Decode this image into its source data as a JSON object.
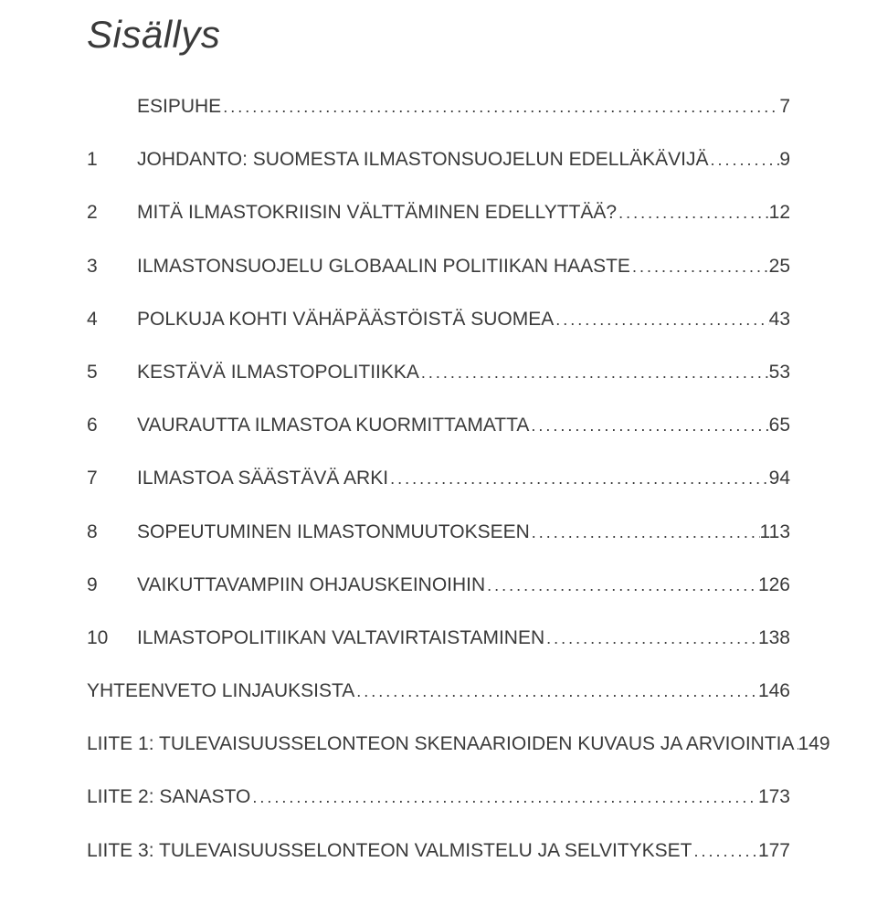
{
  "title": "Sisällys",
  "entries": [
    {
      "num": "",
      "label": "ESIPUHE",
      "page": "7"
    },
    {
      "num": "1",
      "label": "JOHDANTO: SUOMESTA ILMASTONSUOJELUN EDELLÄKÄVIJÄ",
      "page": "9"
    },
    {
      "num": "2",
      "label": "MITÄ ILMASTOKRIISIN VÄLTTÄMINEN EDELLYTTÄÄ?",
      "page": "12"
    },
    {
      "num": "3",
      "label": "ILMASTONSUOJELU GLOBAALIN POLITIIKAN HAASTE",
      "page": "25"
    },
    {
      "num": "4",
      "label": "POLKUJA KOHTI VÄHÄPÄÄSTÖISTÄ SUOMEA",
      "page": "43"
    },
    {
      "num": "5",
      "label": "KESTÄVÄ ILMASTOPOLITIIKKA",
      "page": "53"
    },
    {
      "num": "6",
      "label": "VAURAUTTA ILMASTOA KUORMITTAMATTA",
      "page": "65"
    },
    {
      "num": "7",
      "label": "ILMASTOA SÄÄSTÄVÄ ARKI",
      "page": "94"
    },
    {
      "num": "8",
      "label": "SOPEUTUMINEN ILMASTONMUUTOKSEEN",
      "page": "113"
    },
    {
      "num": "9",
      "label": "VAIKUTTAVAMPIIN OHJAUSKEINOIHIN",
      "page": "126"
    },
    {
      "num": "10",
      "label": "ILMASTOPOLITIIKAN VALTAVIRTAISTAMINEN",
      "page": "138"
    },
    {
      "num": "",
      "label": "YHTEENVETO LINJAUKSISTA",
      "page": "146"
    },
    {
      "num": "",
      "label": "LIITE 1: TULEVAISUUSSELONTEON SKENAARIOIDEN KUVAUS JA ARVIOINTIA",
      "page": "149"
    },
    {
      "num": "",
      "label": "LIITE 2: SANASTO",
      "page": "173"
    },
    {
      "num": "",
      "label": "LIITE 3: TULEVAISUUSSELONTEON VALMISTELU JA SELVITYKSET",
      "page": "177"
    }
  ],
  "style": {
    "background_color": "#ffffff",
    "text_color": "#3a3a3a",
    "title_fontsize": 42,
    "entry_fontsize": 21,
    "font_family": "Arial, Helvetica, sans-serif",
    "title_style": "italic"
  }
}
